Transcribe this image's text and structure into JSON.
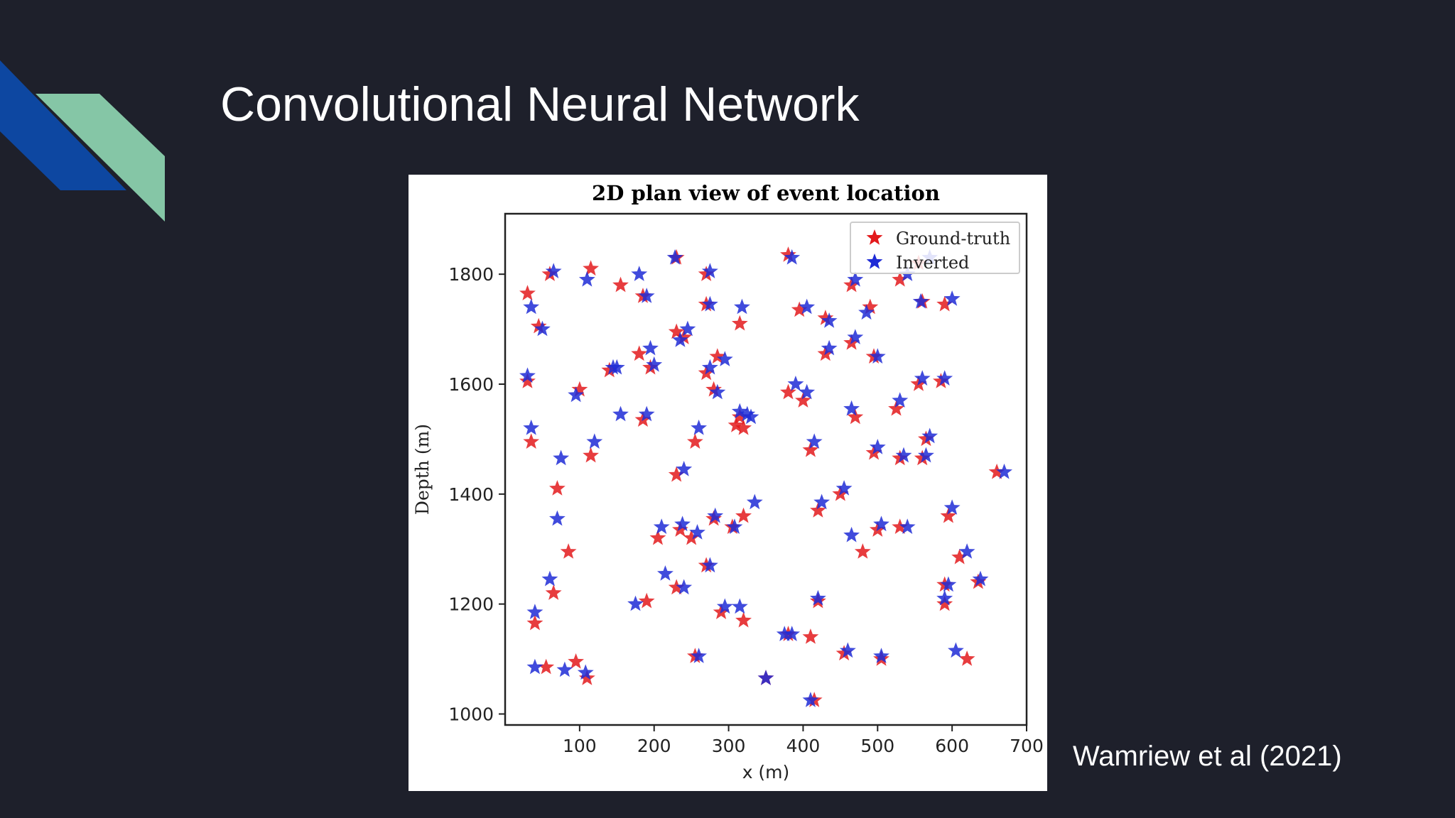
{
  "slide": {
    "title": "Convolutional Neural Network",
    "citation": "Wamriew et al (2021)",
    "accent_colors": {
      "navy_stripe": "#0d47a1",
      "mint_stripe": "#85c6a6",
      "background": "#1e202b"
    }
  },
  "chart_data": {
    "type": "scatter",
    "title": "2D plan view of event location",
    "xlabel": "x (m)",
    "ylabel": "Depth (m)",
    "xlim": [
      0,
      700
    ],
    "ylim": [
      980,
      1910
    ],
    "xticks": [
      "100",
      "200",
      "300",
      "400",
      "500",
      "600",
      "700"
    ],
    "yticks": [
      "1000",
      "1200",
      "1400",
      "1600",
      "1800"
    ],
    "grid": false,
    "legend": "top-right",
    "marker": "star",
    "series": [
      {
        "name": "Ground-truth",
        "color": "#e31a1c",
        "points": [
          [
            30,
            1765
          ],
          [
            45,
            1705
          ],
          [
            60,
            1800
          ],
          [
            115,
            1810
          ],
          [
            155,
            1780
          ],
          [
            185,
            1760
          ],
          [
            230,
            1830
          ],
          [
            270,
            1800
          ],
          [
            270,
            1745
          ],
          [
            315,
            1710
          ],
          [
            380,
            1835
          ],
          [
            395,
            1735
          ],
          [
            430,
            1720
          ],
          [
            465,
            1780
          ],
          [
            490,
            1740
          ],
          [
            560,
            1750
          ],
          [
            590,
            1745
          ],
          [
            530,
            1790
          ],
          [
            555,
            1820
          ],
          [
            30,
            1605
          ],
          [
            100,
            1590
          ],
          [
            140,
            1625
          ],
          [
            180,
            1655
          ],
          [
            195,
            1630
          ],
          [
            230,
            1695
          ],
          [
            240,
            1685
          ],
          [
            270,
            1620
          ],
          [
            280,
            1590
          ],
          [
            285,
            1650
          ],
          [
            310,
            1525
          ],
          [
            320,
            1520
          ],
          [
            315,
            1540
          ],
          [
            380,
            1585
          ],
          [
            400,
            1570
          ],
          [
            430,
            1655
          ],
          [
            465,
            1675
          ],
          [
            495,
            1650
          ],
          [
            525,
            1555
          ],
          [
            555,
            1600
          ],
          [
            585,
            1605
          ],
          [
            35,
            1495
          ],
          [
            70,
            1410
          ],
          [
            115,
            1470
          ],
          [
            185,
            1535
          ],
          [
            230,
            1435
          ],
          [
            255,
            1495
          ],
          [
            320,
            1360
          ],
          [
            410,
            1480
          ],
          [
            420,
            1370
          ],
          [
            450,
            1400
          ],
          [
            470,
            1540
          ],
          [
            495,
            1475
          ],
          [
            530,
            1465
          ],
          [
            560,
            1465
          ],
          [
            565,
            1500
          ],
          [
            660,
            1440
          ],
          [
            85,
            1295
          ],
          [
            65,
            1220
          ],
          [
            40,
            1165
          ],
          [
            205,
            1320
          ],
          [
            235,
            1335
          ],
          [
            250,
            1320
          ],
          [
            270,
            1270
          ],
          [
            230,
            1230
          ],
          [
            190,
            1205
          ],
          [
            290,
            1185
          ],
          [
            320,
            1170
          ],
          [
            280,
            1355
          ],
          [
            305,
            1340
          ],
          [
            410,
            1140
          ],
          [
            380,
            1145
          ],
          [
            420,
            1205
          ],
          [
            455,
            1110
          ],
          [
            505,
            1100
          ],
          [
            500,
            1335
          ],
          [
            480,
            1295
          ],
          [
            530,
            1340
          ],
          [
            595,
            1360
          ],
          [
            590,
            1235
          ],
          [
            590,
            1200
          ],
          [
            610,
            1285
          ],
          [
            635,
            1240
          ],
          [
            620,
            1100
          ],
          [
            55,
            1085
          ],
          [
            95,
            1095
          ],
          [
            110,
            1065
          ],
          [
            255,
            1105
          ],
          [
            350,
            1065
          ],
          [
            415,
            1025
          ]
        ]
      },
      {
        "name": "Inverted",
        "color": "#1f2bd6",
        "points": [
          [
            35,
            1740
          ],
          [
            50,
            1700
          ],
          [
            65,
            1805
          ],
          [
            110,
            1790
          ],
          [
            180,
            1800
          ],
          [
            190,
            1760
          ],
          [
            228,
            1830
          ],
          [
            275,
            1805
          ],
          [
            275,
            1745
          ],
          [
            318,
            1740
          ],
          [
            385,
            1830
          ],
          [
            405,
            1740
          ],
          [
            435,
            1715
          ],
          [
            470,
            1790
          ],
          [
            485,
            1730
          ],
          [
            558,
            1750
          ],
          [
            600,
            1755
          ],
          [
            540,
            1800
          ],
          [
            570,
            1830
          ],
          [
            30,
            1615
          ],
          [
            95,
            1580
          ],
          [
            150,
            1630
          ],
          [
            195,
            1665
          ],
          [
            200,
            1635
          ],
          [
            235,
            1680
          ],
          [
            245,
            1700
          ],
          [
            275,
            1630
          ],
          [
            285,
            1585
          ],
          [
            295,
            1645
          ],
          [
            315,
            1550
          ],
          [
            325,
            1545
          ],
          [
            330,
            1540
          ],
          [
            390,
            1600
          ],
          [
            405,
            1585
          ],
          [
            435,
            1665
          ],
          [
            470,
            1685
          ],
          [
            500,
            1650
          ],
          [
            530,
            1570
          ],
          [
            560,
            1610
          ],
          [
            590,
            1610
          ],
          [
            35,
            1520
          ],
          [
            75,
            1465
          ],
          [
            120,
            1495
          ],
          [
            190,
            1545
          ],
          [
            240,
            1445
          ],
          [
            260,
            1520
          ],
          [
            335,
            1385
          ],
          [
            415,
            1495
          ],
          [
            425,
            1385
          ],
          [
            455,
            1410
          ],
          [
            465,
            1555
          ],
          [
            500,
            1485
          ],
          [
            535,
            1470
          ],
          [
            565,
            1470
          ],
          [
            570,
            1505
          ],
          [
            670,
            1440
          ],
          [
            70,
            1355
          ],
          [
            60,
            1245
          ],
          [
            40,
            1185
          ],
          [
            210,
            1340
          ],
          [
            238,
            1345
          ],
          [
            258,
            1330
          ],
          [
            275,
            1270
          ],
          [
            240,
            1230
          ],
          [
            175,
            1200
          ],
          [
            295,
            1195
          ],
          [
            315,
            1195
          ],
          [
            282,
            1360
          ],
          [
            308,
            1340
          ],
          [
            385,
            1145
          ],
          [
            375,
            1145
          ],
          [
            420,
            1210
          ],
          [
            460,
            1115
          ],
          [
            505,
            1105
          ],
          [
            505,
            1345
          ],
          [
            465,
            1325
          ],
          [
            540,
            1340
          ],
          [
            600,
            1375
          ],
          [
            595,
            1235
          ],
          [
            590,
            1210
          ],
          [
            620,
            1295
          ],
          [
            638,
            1245
          ],
          [
            605,
            1115
          ],
          [
            40,
            1085
          ],
          [
            80,
            1080
          ],
          [
            108,
            1075
          ],
          [
            260,
            1105
          ],
          [
            350,
            1065
          ],
          [
            410,
            1025
          ],
          [
            145,
            1630
          ],
          [
            155,
            1545
          ],
          [
            215,
            1255
          ]
        ]
      }
    ]
  }
}
